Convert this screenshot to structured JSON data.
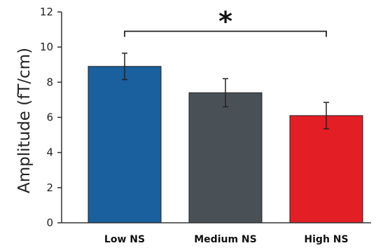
{
  "chart_data": {
    "type": "bar",
    "categories": [
      "Low NS",
      "Medium NS",
      "High NS"
    ],
    "values": [
      8.9,
      7.4,
      6.1
    ],
    "errors": [
      0.75,
      0.8,
      0.75
    ],
    "colors": [
      "#1a5f9e",
      "#4a5156",
      "#e31e24"
    ],
    "ylabel": "Amplitude (fT/cm)",
    "ylim": [
      0,
      12
    ],
    "yticks": [
      0,
      2,
      4,
      6,
      8,
      10,
      12
    ],
    "grid": false,
    "significance": {
      "from": "Low NS",
      "to": "High NS",
      "label": "*"
    }
  }
}
